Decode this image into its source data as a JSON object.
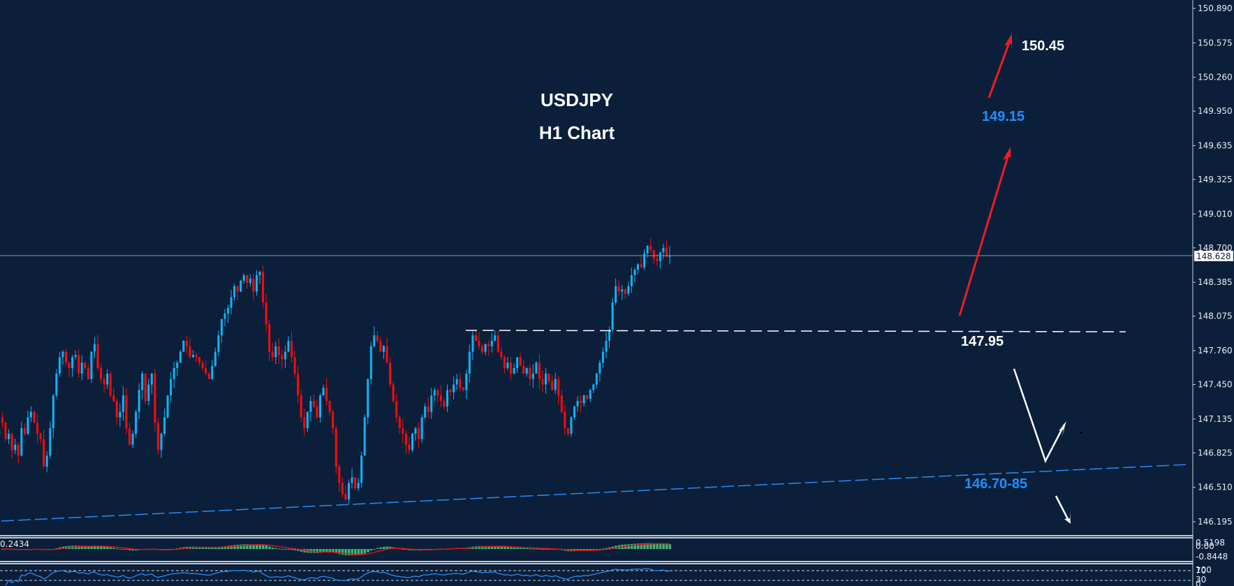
{
  "chart_data": {
    "type": "candlestick",
    "title": "USDJPY",
    "subtitle": "H1 Chart",
    "symbol": "USDJPY",
    "timeframe": "H1",
    "current_price": "148.628",
    "y_axis": {
      "ticks": [
        "150.890",
        "150.575",
        "150.260",
        "149.950",
        "149.635",
        "149.325",
        "149.010",
        "148.700",
        "148.385",
        "148.075",
        "147.760",
        "147.450",
        "147.135",
        "146.825",
        "146.510",
        "146.195"
      ],
      "range": [
        146.05,
        150.95
      ]
    },
    "levels": [
      {
        "name": "resistance-breakout",
        "value": 147.95,
        "label": "147.95",
        "style": "white-dashed"
      },
      {
        "name": "trendline-support",
        "label": "146.70-85",
        "style": "blue-dashed-rising"
      }
    ],
    "targets": [
      {
        "label": "149.15",
        "color": "#1e90ff"
      },
      {
        "label": "150.45",
        "color": "#ffffff"
      }
    ],
    "closes": [
      147.1,
      146.95,
      147.0,
      146.85,
      146.9,
      146.8,
      147.05,
      147.0,
      147.15,
      147.2,
      147.1,
      147.0,
      146.95,
      146.7,
      146.8,
      147.05,
      147.35,
      147.55,
      147.7,
      147.75,
      147.65,
      147.6,
      147.7,
      147.72,
      147.55,
      147.65,
      147.6,
      147.5,
      147.75,
      147.82,
      147.6,
      147.5,
      147.45,
      147.55,
      147.35,
      147.3,
      147.15,
      147.2,
      147.35,
      147.05,
      146.9,
      147.0,
      147.2,
      147.4,
      147.55,
      147.3,
      147.45,
      147.55,
      147.1,
      146.85,
      147.0,
      147.15,
      147.35,
      147.5,
      147.6,
      147.65,
      147.75,
      147.85,
      147.8,
      147.7,
      147.72,
      147.7,
      147.65,
      147.6,
      147.55,
      147.5,
      147.62,
      147.75,
      147.9,
      148.05,
      148.1,
      148.15,
      148.25,
      148.35,
      148.3,
      148.4,
      148.45,
      148.38,
      148.42,
      148.3,
      148.45,
      148.48,
      148.2,
      148.0,
      147.75,
      147.7,
      147.8,
      147.72,
      147.68,
      147.75,
      147.85,
      147.7,
      147.55,
      147.35,
      147.15,
      147.05,
      147.2,
      147.3,
      147.25,
      147.15,
      147.35,
      147.42,
      147.3,
      147.2,
      147.05,
      146.7,
      146.55,
      146.45,
      146.4,
      146.55,
      146.6,
      146.5,
      146.55,
      146.8,
      147.15,
      147.5,
      147.8,
      147.9,
      147.85,
      147.75,
      147.8,
      147.65,
      147.45,
      147.3,
      147.15,
      147.05,
      147.0,
      146.9,
      146.85,
      147.0,
      147.05,
      146.95,
      147.15,
      147.25,
      147.2,
      147.35,
      147.4,
      147.35,
      147.3,
      147.25,
      147.4,
      147.38,
      147.45,
      147.5,
      147.42,
      147.4,
      147.55,
      147.75,
      147.9,
      147.85,
      147.8,
      147.75,
      147.82,
      147.8,
      147.85,
      147.9,
      147.75,
      147.7,
      147.6,
      147.65,
      147.55,
      147.6,
      147.7,
      147.62,
      147.55,
      147.6,
      147.5,
      147.55,
      147.65,
      147.5,
      147.45,
      147.55,
      147.48,
      147.4,
      147.5,
      147.35,
      147.2,
      147.05,
      147.0,
      147.15,
      147.25,
      147.3,
      147.28,
      147.35,
      147.32,
      147.4,
      147.45,
      147.55,
      147.65,
      147.75,
      147.85,
      147.95,
      148.2,
      148.35,
      148.3,
      148.32,
      148.28,
      148.35,
      148.45,
      148.5,
      148.55,
      148.52,
      148.65,
      148.72,
      148.68,
      148.6,
      148.58,
      148.66,
      148.7,
      148.62,
      148.628
    ],
    "indicators": [
      {
        "name": "MACD",
        "values_shown": [
          "0.2434",
          "0.5198",
          "0.00",
          "-0.8448"
        ]
      },
      {
        "name": "RSI",
        "levels": [
          "70",
          "30"
        ],
        "bounds": [
          "100",
          "0"
        ]
      }
    ]
  },
  "labels": {
    "title_line1": "USDJPY",
    "title_line2": "H1 Chart",
    "target_high": "150.45",
    "target_mid": "149.15",
    "breakout_level": "147.95",
    "support_zone": "146.70-85",
    "current_price_tag": "148.628",
    "macd_value_left": "0.2434",
    "macd_axis_top": "0.5198",
    "macd_axis_zero": "0.00",
    "macd_axis_bottom": "-0.8448",
    "rsi_axis_100": "100",
    "rsi_axis_70": "70",
    "rsi_axis_30": "30",
    "rsi_axis_0": "0"
  },
  "colors": {
    "background": "#0b1f3a",
    "bull": "#10b4f5",
    "bear": "#ff0a0a",
    "target_arrow": "#ee1c25",
    "trendline": "#2a8bf0",
    "annotation_blue": "#1e90ff",
    "text": "#ffffff",
    "macd_hist": "#3cb878",
    "macd_signal": "#dd1111",
    "rsi_line": "#2a8bf0"
  }
}
